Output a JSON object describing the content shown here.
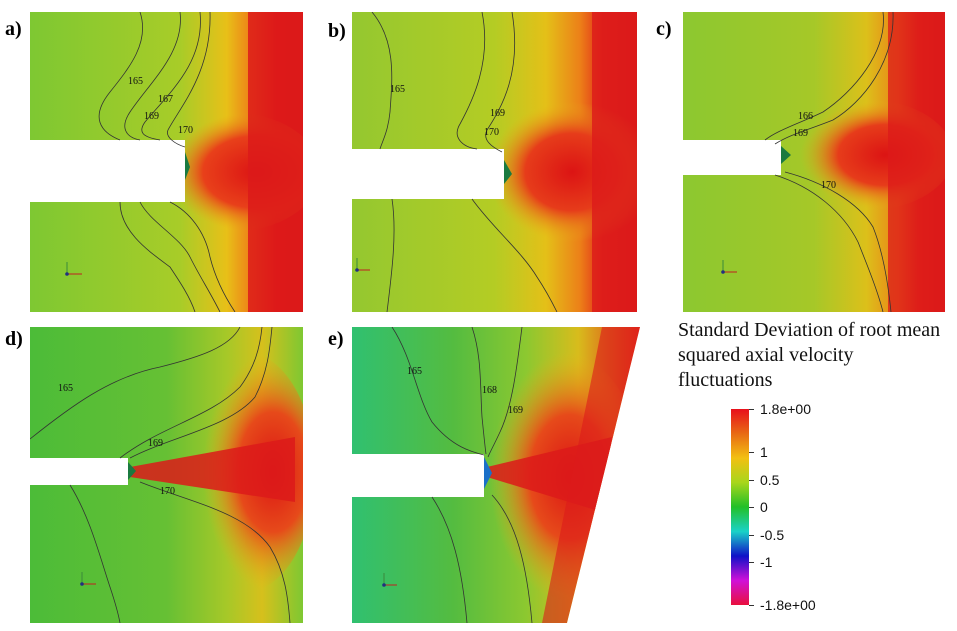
{
  "panels": [
    {
      "label": "a)",
      "contours": [
        "165",
        "167",
        "169",
        "170"
      ]
    },
    {
      "label": "b)",
      "contours": [
        "165",
        "169",
        "170"
      ]
    },
    {
      "label": "c)",
      "contours": [
        "166",
        "169",
        "170"
      ]
    },
    {
      "label": "d)",
      "contours": [
        "165",
        "169",
        "170"
      ]
    },
    {
      "label": "e)",
      "contours": [
        "165",
        "168",
        "169"
      ]
    }
  ],
  "legend": {
    "title": "Standard Deviation of root mean squared axial velocity fluctuations",
    "ticks": [
      "1.8e+00",
      "1",
      "0.5",
      "0",
      "-0.5",
      "-1",
      "-1.8e+00"
    ],
    "colors": [
      "#e8101c",
      "#e86a14",
      "#f2c012",
      "#a8d61c",
      "#22c028",
      "#1ad2c8",
      "#1010c8",
      "#d010d8",
      "#e8103c"
    ]
  }
}
